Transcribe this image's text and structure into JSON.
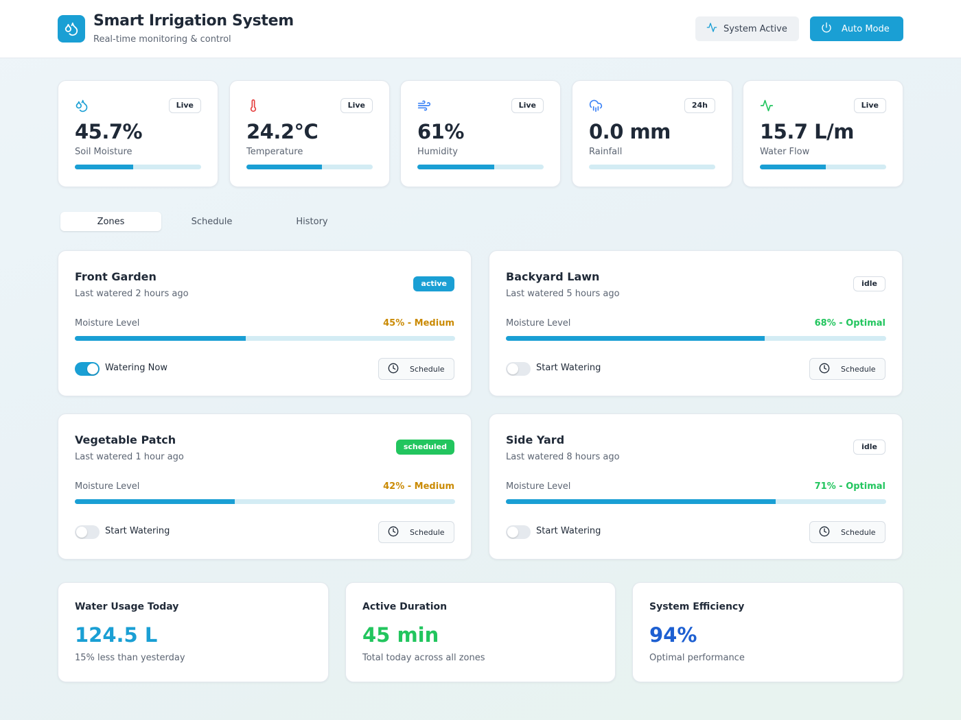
{
  "header": {
    "title": "Smart Irrigation System",
    "subtitle": "Real-time monitoring & control",
    "status_button": "System Active",
    "mode_button": "Auto Mode"
  },
  "stats": [
    {
      "icon": "droplets-icon",
      "badge": "Live",
      "value": "45.7%",
      "label": "Soil Moisture",
      "progress": 0.46
    },
    {
      "icon": "thermometer-icon",
      "badge": "Live",
      "value": "24.2°C",
      "label": "Temperature",
      "progress": 0.6
    },
    {
      "icon": "wind-icon",
      "badge": "Live",
      "value": "61%",
      "label": "Humidity",
      "progress": 0.61
    },
    {
      "icon": "cloud-rain-icon",
      "badge": "24h",
      "value": "0.0 mm",
      "label": "Rainfall",
      "progress": 0.0
    },
    {
      "icon": "activity-icon",
      "badge": "Live",
      "value": "15.7 L/m",
      "label": "Water Flow",
      "progress": 0.52
    }
  ],
  "tabs": [
    "Zones",
    "Schedule",
    "History"
  ],
  "zones": [
    {
      "name": "Front Garden",
      "last_watered": "Last watered 2 hours ago",
      "status": "active",
      "moisture_label": "Moisture Level",
      "moisture_text": "45% - Medium",
      "moisture": 0.45,
      "watering": true,
      "toggle_label": "Watering Now",
      "schedule_label": "Schedule"
    },
    {
      "name": "Backyard Lawn",
      "last_watered": "Last watered 5 hours ago",
      "status": "idle",
      "moisture_label": "Moisture Level",
      "moisture_text": "68% - Optimal",
      "moisture": 0.68,
      "watering": false,
      "toggle_label": "Start Watering",
      "schedule_label": "Schedule"
    },
    {
      "name": "Vegetable Patch",
      "last_watered": "Last watered 1 hour ago",
      "status": "scheduled",
      "moisture_label": "Moisture Level",
      "moisture_text": "42% - Medium",
      "moisture": 0.42,
      "watering": false,
      "toggle_label": "Start Watering",
      "schedule_label": "Schedule"
    },
    {
      "name": "Side Yard",
      "last_watered": "Last watered 8 hours ago",
      "status": "idle",
      "moisture_label": "Moisture Level",
      "moisture_text": "71% - Optimal",
      "moisture": 0.71,
      "watering": false,
      "toggle_label": "Start Watering",
      "schedule_label": "Schedule"
    }
  ],
  "summary": [
    {
      "title": "Water Usage Today",
      "value": "124.5 L",
      "subtitle": "15% less than yesterday",
      "color": "#1a9fd4"
    },
    {
      "title": "Active Duration",
      "value": "45 min",
      "subtitle": "Total today across all zones",
      "color": "#22c55e"
    },
    {
      "title": "System Efficiency",
      "value": "94%",
      "subtitle": "Optimal performance",
      "color": "#1d5fd1"
    }
  ],
  "colors": {
    "accent": "#1a9fd4",
    "optimal": "#22c55e",
    "medium": "#ca8a04",
    "efficiency": "#1d5fd1"
  }
}
